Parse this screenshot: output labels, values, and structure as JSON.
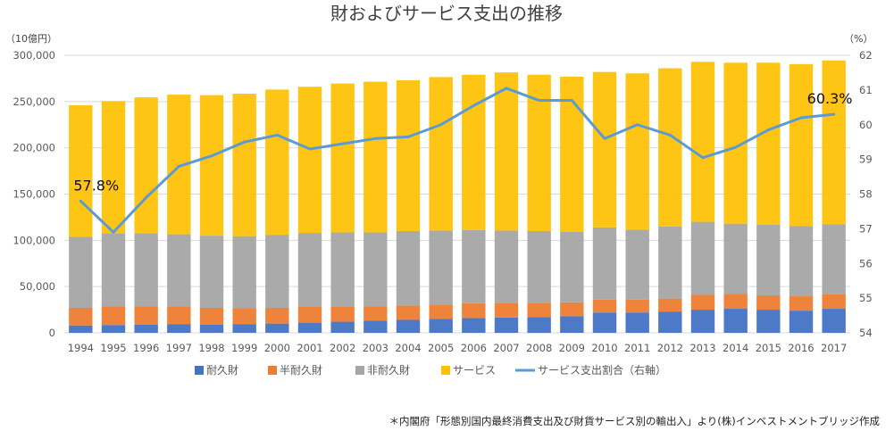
{
  "chart_data": {
    "type": "bar",
    "title": "財およびサービス支出の推移",
    "left_unit": "（10億円）",
    "right_unit": "（%）",
    "categories": [
      "1994",
      "1995",
      "1996",
      "1997",
      "1998",
      "1999",
      "2000",
      "2001",
      "2002",
      "2003",
      "2004",
      "2005",
      "2006",
      "2007",
      "2008",
      "2009",
      "2010",
      "2011",
      "2012",
      "2013",
      "2014",
      "2015",
      "2016",
      "2017"
    ],
    "series": [
      {
        "name": "耐久財",
        "color": "#4472c4",
        "values": [
          8000,
          8500,
          9000,
          9500,
          9000,
          9500,
          10000,
          11000,
          12000,
          13000,
          14000,
          15000,
          16000,
          16500,
          17000,
          18000,
          22000,
          22000,
          23000,
          25000,
          26000,
          25000,
          24000,
          26000
        ]
      },
      {
        "name": "半耐久財",
        "color": "#ed7d31",
        "values": [
          19000,
          20000,
          19500,
          19000,
          18000,
          17000,
          17000,
          17000,
          16000,
          15500,
          15500,
          15500,
          16000,
          16000,
          15500,
          15000,
          14000,
          14000,
          14000,
          16000,
          16000,
          15500,
          15500,
          15500
        ]
      },
      {
        "name": "非耐久財",
        "color": "#a5a5a5",
        "values": [
          77000,
          79000,
          79000,
          78000,
          78000,
          78000,
          79000,
          80000,
          80500,
          80000,
          80500,
          80000,
          79000,
          78000,
          77500,
          76000,
          78000,
          75500,
          78000,
          79000,
          76000,
          76500,
          76000,
          76000
        ]
      },
      {
        "name": "サービス",
        "color": "#ffc000",
        "values": [
          142000,
          143000,
          147000,
          151000,
          152000,
          154000,
          157000,
          158000,
          161000,
          163000,
          163000,
          166000,
          168000,
          171000,
          169000,
          168000,
          168000,
          169000,
          171000,
          173000,
          174000,
          175000,
          175000,
          177000
        ]
      }
    ],
    "line": {
      "name": "サービス支出割合（右軸）",
      "color": "#5b9bd5",
      "values": [
        57.8,
        56.9,
        57.9,
        58.8,
        59.1,
        59.5,
        59.7,
        59.3,
        59.45,
        59.6,
        59.65,
        60.0,
        60.55,
        61.05,
        60.7,
        60.7,
        59.6,
        60.0,
        59.7,
        59.05,
        59.35,
        59.85,
        60.2,
        60.3
      ]
    },
    "ylim_left": [
      0,
      300000
    ],
    "ylim_right": [
      54,
      62
    ],
    "left_ticks": [
      "0",
      "50,000",
      "100,000",
      "150,000",
      "200,000",
      "250,000",
      "300,000"
    ],
    "right_ticks": [
      "54",
      "55",
      "56",
      "57",
      "58",
      "59",
      "60",
      "61",
      "62"
    ],
    "annotations": [
      {
        "index": 0,
        "text": "57.8%"
      },
      {
        "index": 23,
        "text": "60.3%"
      }
    ],
    "legend": "bottom",
    "grid": true,
    "source": "＊内閣府「形態別国内最終消費支出及び財貨サービス別の輸出入」より(株)インベストメントブリッジ作成"
  }
}
